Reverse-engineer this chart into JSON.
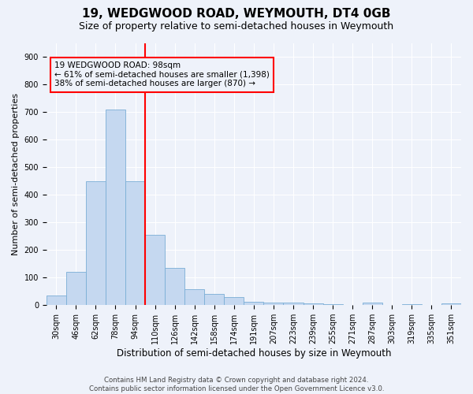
{
  "title": "19, WEDGWOOD ROAD, WEYMOUTH, DT4 0GB",
  "subtitle": "Size of property relative to semi-detached houses in Weymouth",
  "xlabel": "Distribution of semi-detached houses by size in Weymouth",
  "ylabel": "Number of semi-detached properties",
  "categories": [
    "30sqm",
    "46sqm",
    "62sqm",
    "78sqm",
    "94sqm",
    "110sqm",
    "126sqm",
    "142sqm",
    "158sqm",
    "174sqm",
    "191sqm",
    "207sqm",
    "223sqm",
    "239sqm",
    "255sqm",
    "271sqm",
    "287sqm",
    "303sqm",
    "319sqm",
    "335sqm",
    "351sqm"
  ],
  "values": [
    35,
    120,
    450,
    710,
    450,
    255,
    135,
    58,
    40,
    30,
    12,
    10,
    8,
    6,
    3,
    2,
    8,
    2,
    4,
    2,
    5
  ],
  "bar_color": "#c5d8f0",
  "bar_edge_color": "#7aaed6",
  "property_line_x": 4.5,
  "property_label": "19 WEDGWOOD ROAD: 98sqm",
  "annotation_line1": "← 61% of semi-detached houses are smaller (1,398)",
  "annotation_line2": "38% of semi-detached houses are larger (870) →",
  "ylim": [
    0,
    950
  ],
  "yticks": [
    0,
    100,
    200,
    300,
    400,
    500,
    600,
    700,
    800,
    900
  ],
  "background_color": "#eef2fa",
  "footer_line1": "Contains HM Land Registry data © Crown copyright and database right 2024.",
  "footer_line2": "Contains public sector information licensed under the Open Government Licence v3.0.",
  "title_fontsize": 11,
  "subtitle_fontsize": 9,
  "grid_color": "#ffffff",
  "annotation_font_size": 7.5,
  "tick_fontsize": 7,
  "ylabel_fontsize": 8,
  "xlabel_fontsize": 8.5
}
